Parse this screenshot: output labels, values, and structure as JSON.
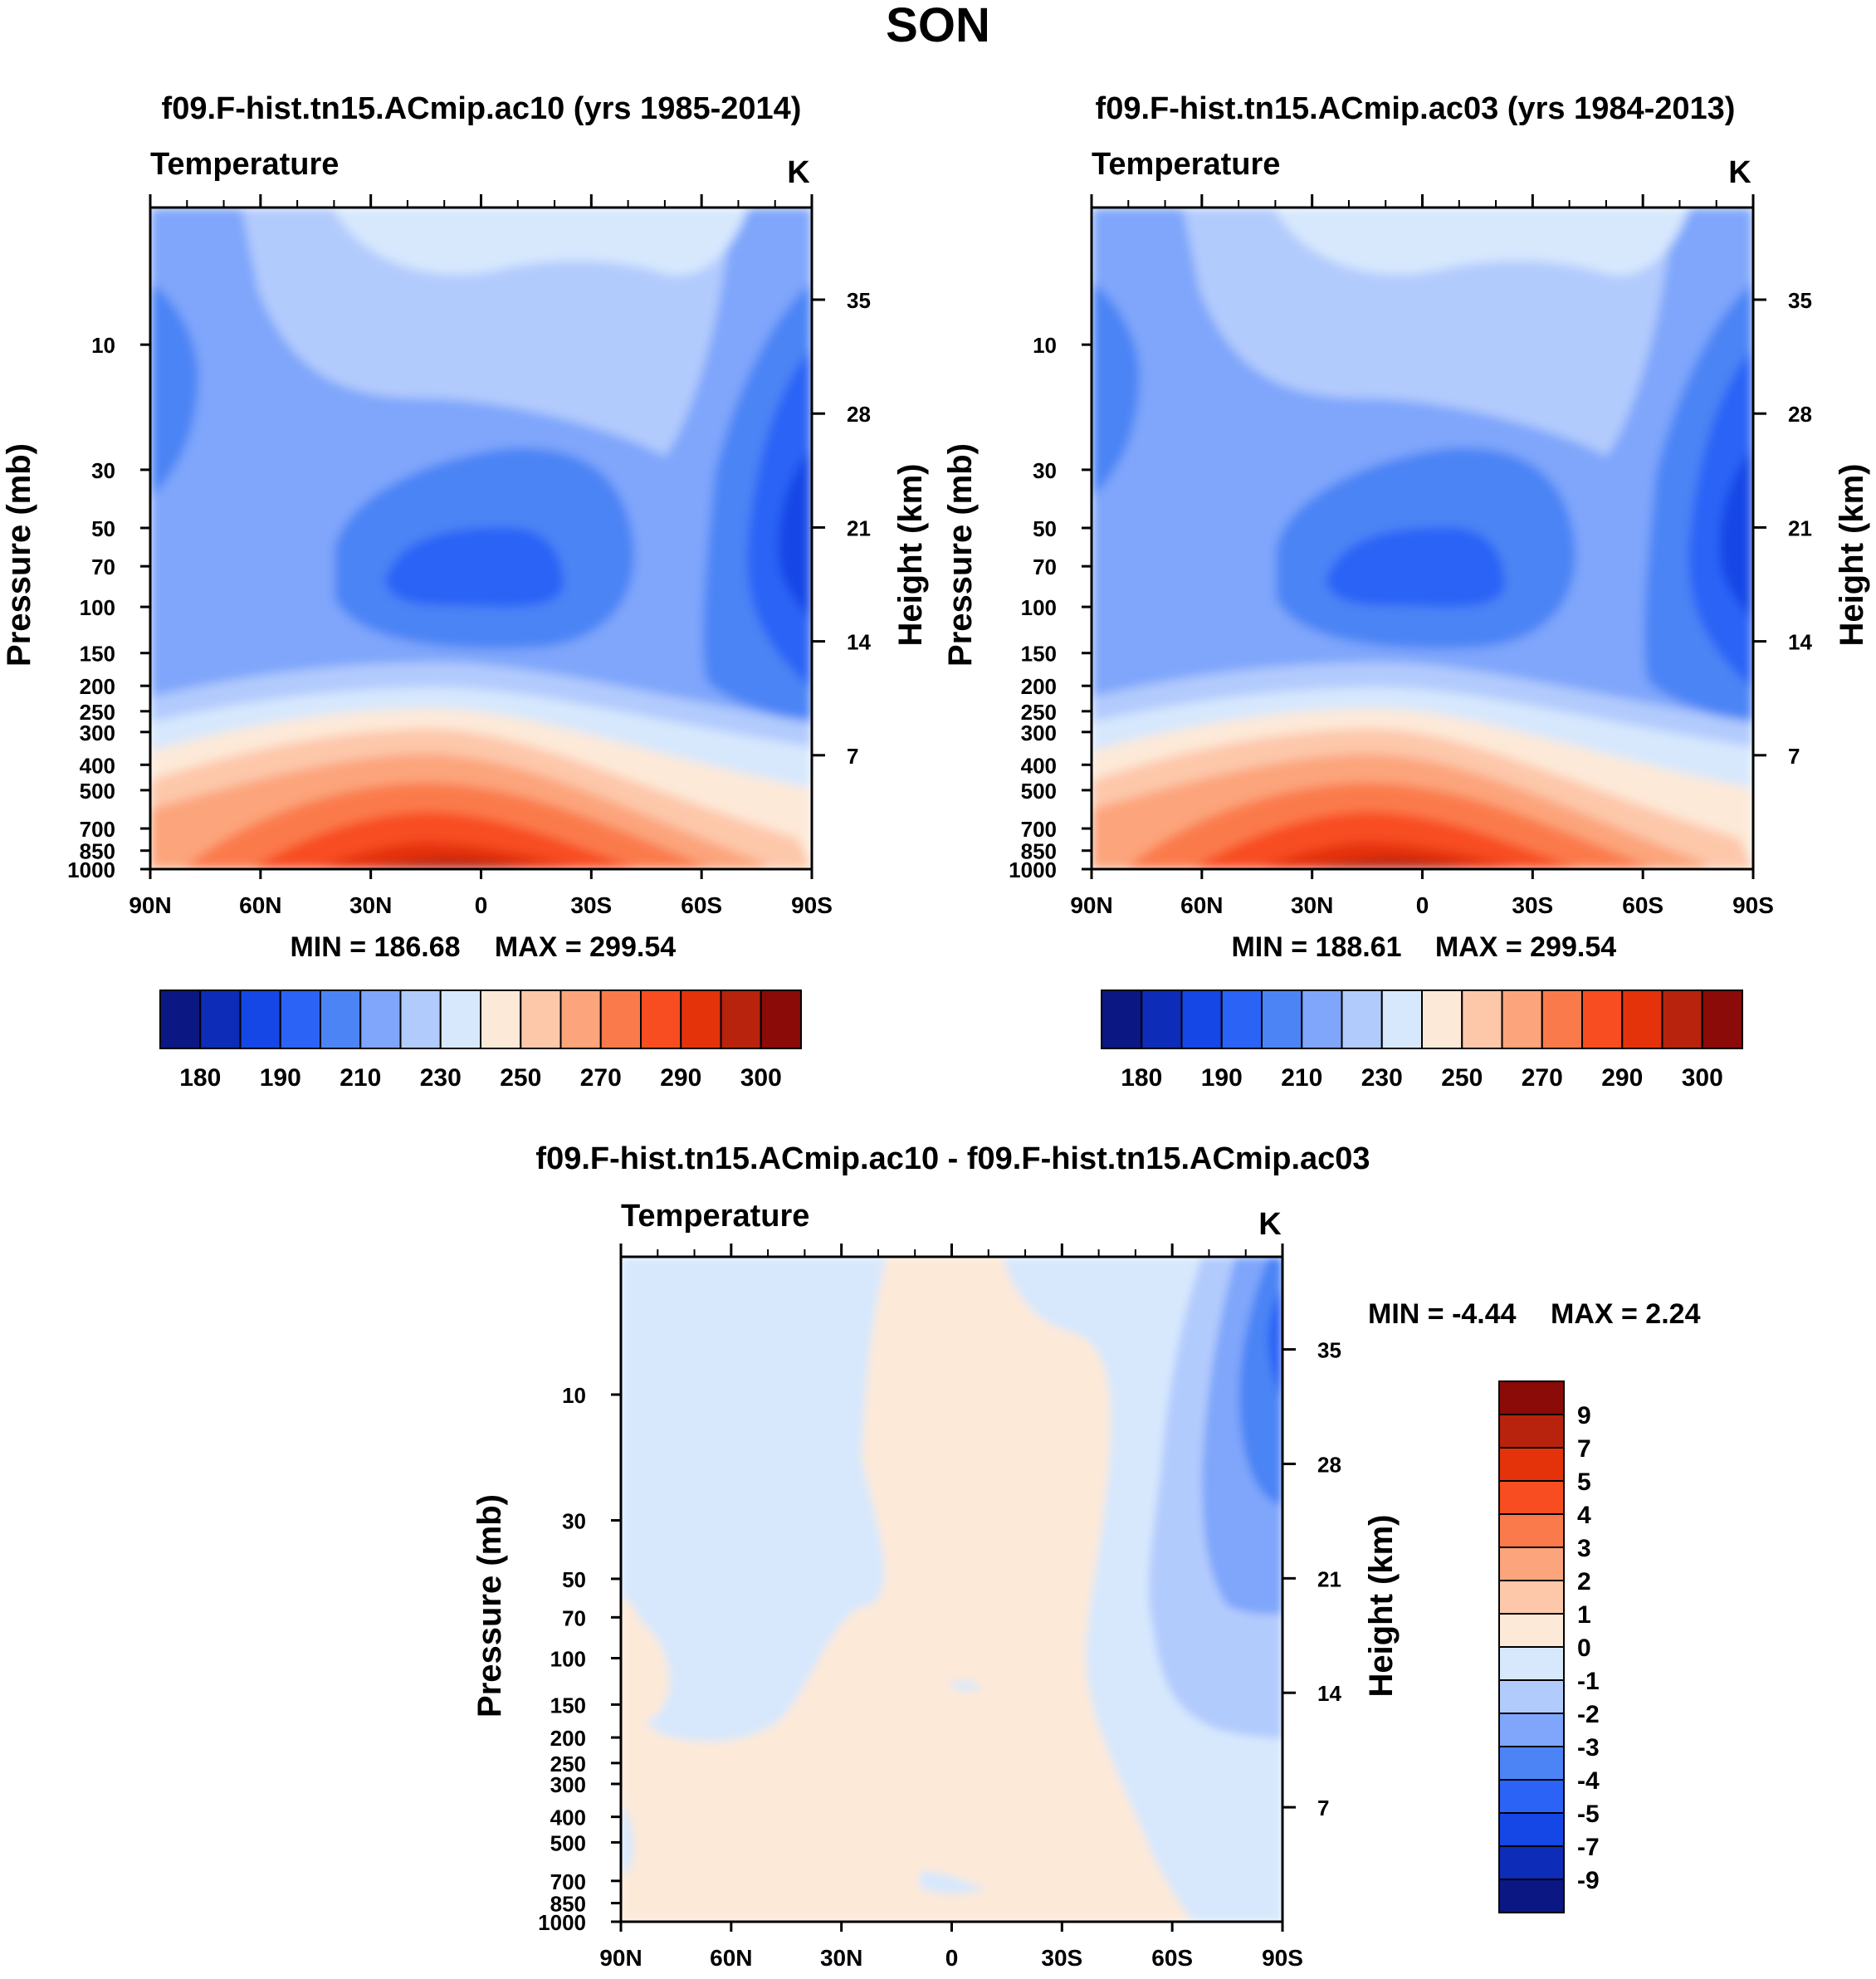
{
  "figure": {
    "title": "SON"
  },
  "colors": {
    "abs_levels": [
      "#0b1783",
      "#0d2cb8",
      "#1547e6",
      "#2b63f6",
      "#4c84f5",
      "#7fa6fb",
      "#b2cbfd",
      "#d7e8fd",
      "#fde9d8",
      "#fdc7aa",
      "#fca47b",
      "#fb7a4b",
      "#f84d20",
      "#e4330b",
      "#b7230c",
      "#8a0b07"
    ],
    "diff_levels": [
      "#0b1783",
      "#0d2cb8",
      "#1547e6",
      "#2b63f6",
      "#4c84f5",
      "#7fa6fb",
      "#b2cbfd",
      "#d7e8fd",
      "#fde9d8",
      "#fdc7aa",
      "#fca47b",
      "#fb7a4b",
      "#f84d20",
      "#e4330b",
      "#b7230c",
      "#8a0b07"
    ]
  },
  "chart_data": [
    {
      "type": "heatmap",
      "id": "panel-ac10",
      "title": "f09.F-hist.tn15.ACmip.ac10 (yrs 1985-2014)",
      "variable": "Temperature",
      "units": "K",
      "ylabel": "Pressure (mb)",
      "ylabel_right": "Height (km)",
      "x_ticks": [
        "90N",
        "60N",
        "30N",
        "0",
        "30S",
        "60S",
        "90S"
      ],
      "y_ticks": [
        10,
        30,
        50,
        70,
        100,
        150,
        200,
        250,
        300,
        400,
        500,
        700,
        850,
        1000
      ],
      "y_ticks_right": [
        35,
        28,
        21,
        14,
        7
      ],
      "ylim": [
        3,
        1000
      ],
      "y_scale": "log",
      "min_label": "MIN = 186.68",
      "max_label": "MAX = 299.54",
      "min": 186.68,
      "max": 299.54,
      "colorbar": {
        "tick_labels": [
          "180",
          "190",
          "210",
          "230",
          "250",
          "270",
          "290",
          "300"
        ],
        "levels": [
          175,
          180,
          185,
          190,
          200,
          210,
          220,
          230,
          240,
          250,
          260,
          270,
          280,
          290,
          295,
          300
        ]
      }
    },
    {
      "type": "heatmap",
      "id": "panel-ac03",
      "title": "f09.F-hist.tn15.ACmip.ac03 (yrs 1984-2013)",
      "variable": "Temperature",
      "units": "K",
      "ylabel": "Pressure (mb)",
      "ylabel_right": "Height (km)",
      "x_ticks": [
        "90N",
        "60N",
        "30N",
        "0",
        "30S",
        "60S",
        "90S"
      ],
      "y_ticks": [
        10,
        30,
        50,
        70,
        100,
        150,
        200,
        250,
        300,
        400,
        500,
        700,
        850,
        1000
      ],
      "y_ticks_right": [
        35,
        28,
        21,
        14,
        7
      ],
      "ylim": [
        3,
        1000
      ],
      "y_scale": "log",
      "min_label": "MIN = 188.61",
      "max_label": "MAX = 299.54",
      "min": 188.61,
      "max": 299.54,
      "colorbar": {
        "tick_labels": [
          "180",
          "190",
          "210",
          "230",
          "250",
          "270",
          "290",
          "300"
        ],
        "levels": [
          175,
          180,
          185,
          190,
          200,
          210,
          220,
          230,
          240,
          250,
          260,
          270,
          280,
          290,
          295,
          300
        ]
      }
    },
    {
      "type": "heatmap",
      "id": "panel-diff",
      "title": "f09.F-hist.tn15.ACmip.ac10 - f09.F-hist.tn15.ACmip.ac03",
      "variable": "Temperature",
      "units": "K",
      "ylabel": "Pressure (mb)",
      "ylabel_right": "Height (km)",
      "x_ticks": [
        "90N",
        "60N",
        "30N",
        "0",
        "30S",
        "60S",
        "90S"
      ],
      "y_ticks": [
        10,
        30,
        50,
        70,
        100,
        150,
        200,
        250,
        300,
        400,
        500,
        700,
        850,
        1000
      ],
      "y_ticks_right": [
        35,
        28,
        21,
        14,
        7
      ],
      "ylim": [
        3,
        1000
      ],
      "y_scale": "log",
      "min_label": "MIN =  -4.44",
      "max_label": "MAX =   2.24",
      "min": -4.44,
      "max": 2.24,
      "colorbar": {
        "orientation": "vertical",
        "tick_labels": [
          "9",
          "7",
          "5",
          "4",
          "3",
          "2",
          "1",
          "0",
          "-1",
          "-2",
          "-3",
          "-4",
          "-5",
          "-7",
          "-9"
        ]
      }
    }
  ]
}
